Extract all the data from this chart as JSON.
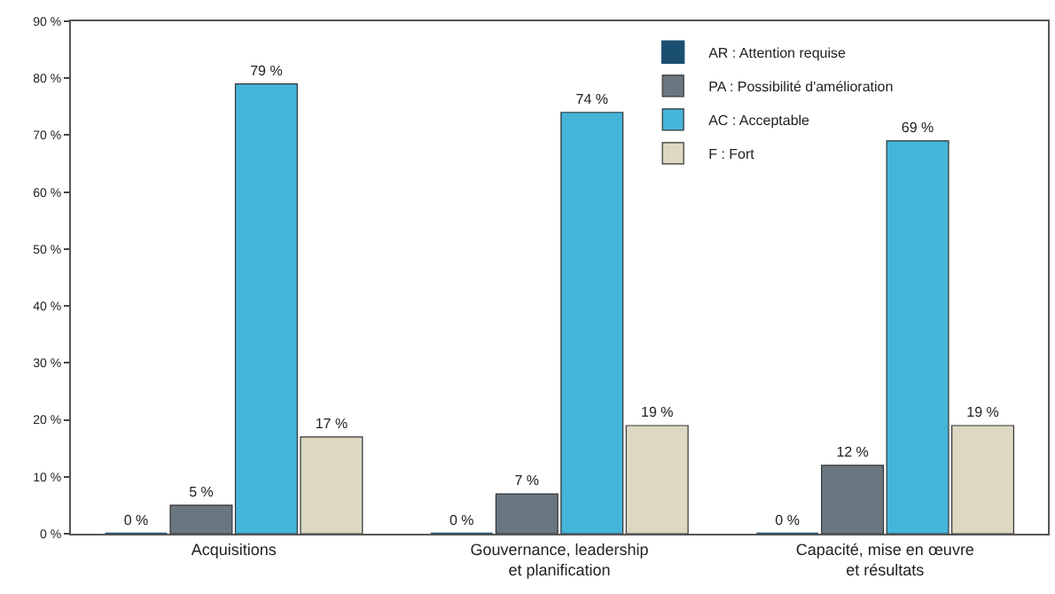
{
  "chart_data": {
    "type": "bar",
    "categories": [
      "Acquisitions",
      "Gouvernance, leadership\net planification",
      "Capacité, mise en œuvre\net résultats"
    ],
    "series": [
      {
        "name": "AR : Attention requise",
        "color": "#1b4f72",
        "values": [
          0,
          0,
          0
        ],
        "value_labels": [
          "0 %",
          "0 %",
          "0 %"
        ]
      },
      {
        "name": "PA : Possibilité d'amélioration",
        "color": "#6b7780",
        "values": [
          5,
          7,
          12
        ],
        "value_labels": [
          "5 %",
          "7 %",
          "12 %"
        ]
      },
      {
        "name": "AC : Acceptable",
        "color": "#45b5d9",
        "values": [
          79,
          74,
          69
        ],
        "value_labels": [
          "79 %",
          "74 %",
          "69 %"
        ]
      },
      {
        "name": "F : Fort",
        "color": "#ddd8c2",
        "values": [
          17,
          19,
          19
        ],
        "value_labels": [
          "17 %",
          "19 %",
          "19 %"
        ]
      }
    ],
    "ylim": [
      0,
      90
    ],
    "yticks": [
      {
        "value": 0,
        "label": "0 %"
      },
      {
        "value": 10,
        "label": "10 %"
      },
      {
        "value": 20,
        "label": "20 %"
      },
      {
        "value": 30,
        "label": "30 %"
      },
      {
        "value": 40,
        "label": "40 %"
      },
      {
        "value": 50,
        "label": "50 %"
      },
      {
        "value": 60,
        "label": "60 %"
      },
      {
        "value": 70,
        "label": "70 %"
      },
      {
        "value": 80,
        "label": "80 %"
      },
      {
        "value": 90,
        "label": "90 %"
      }
    ],
    "grid": false,
    "legend": "top right"
  }
}
